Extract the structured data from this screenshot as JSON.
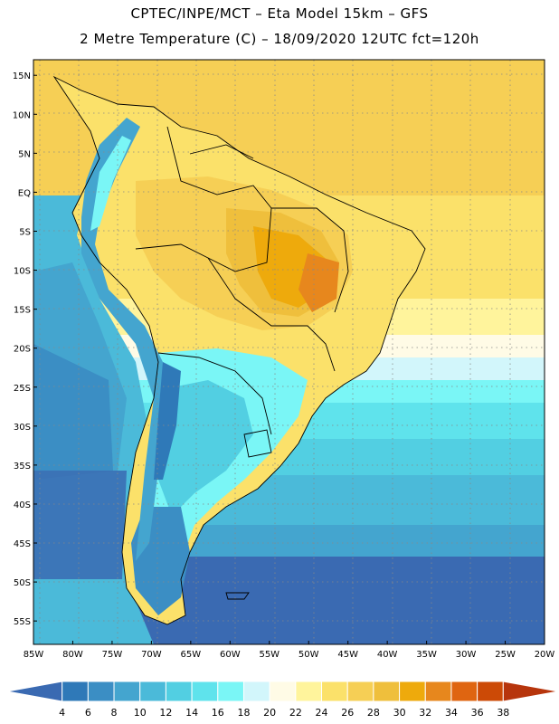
{
  "header": {
    "line1": "CPTEC/INPE/MCT –  Eta Model 15km – GFS",
    "line2": "2 Metre Temperature (C) – 18/09/2020 12UTC fct=120h"
  },
  "map": {
    "lon_range": [
      -85,
      -20
    ],
    "lat_range": [
      -58,
      17
    ],
    "lat_ticks": [
      "15N",
      "10N",
      "5N",
      "EQ",
      "5S",
      "10S",
      "15S",
      "20S",
      "25S",
      "30S",
      "35S",
      "40S",
      "45S",
      "50S",
      "55S"
    ],
    "lat_values": [
      15,
      10,
      5,
      0,
      -5,
      -10,
      -15,
      -20,
      -25,
      -30,
      -35,
      -40,
      -45,
      -50,
      -55
    ],
    "lon_ticks": [
      "85W",
      "80W",
      "75W",
      "70W",
      "65W",
      "60W",
      "55W",
      "50W",
      "45W",
      "40W",
      "35W",
      "30W",
      "25W",
      "20W"
    ],
    "lon_values": [
      -85,
      -80,
      -75,
      -70,
      -65,
      -60,
      -55,
      -50,
      -45,
      -40,
      -35,
      -30,
      -25,
      -20
    ],
    "grid": "dotted"
  },
  "colorbar": {
    "labels": [
      "4",
      "6",
      "8",
      "10",
      "12",
      "14",
      "16",
      "18",
      "20",
      "22",
      "24",
      "26",
      "28",
      "30",
      "32",
      "34",
      "36",
      "38"
    ],
    "colors": [
      "#3a6ab2",
      "#2f79b8",
      "#3b8ec4",
      "#44a5cf",
      "#4bbad9",
      "#52cfe2",
      "#5fe3ec",
      "#7af6f6",
      "#d2f6fb",
      "#fffbe6",
      "#fff49c",
      "#fbe16a",
      "#f6cf55",
      "#efbf3c",
      "#eeaa0c",
      "#e7871d",
      "#df6511",
      "#cc4a06",
      "#b7350c"
    ]
  }
}
